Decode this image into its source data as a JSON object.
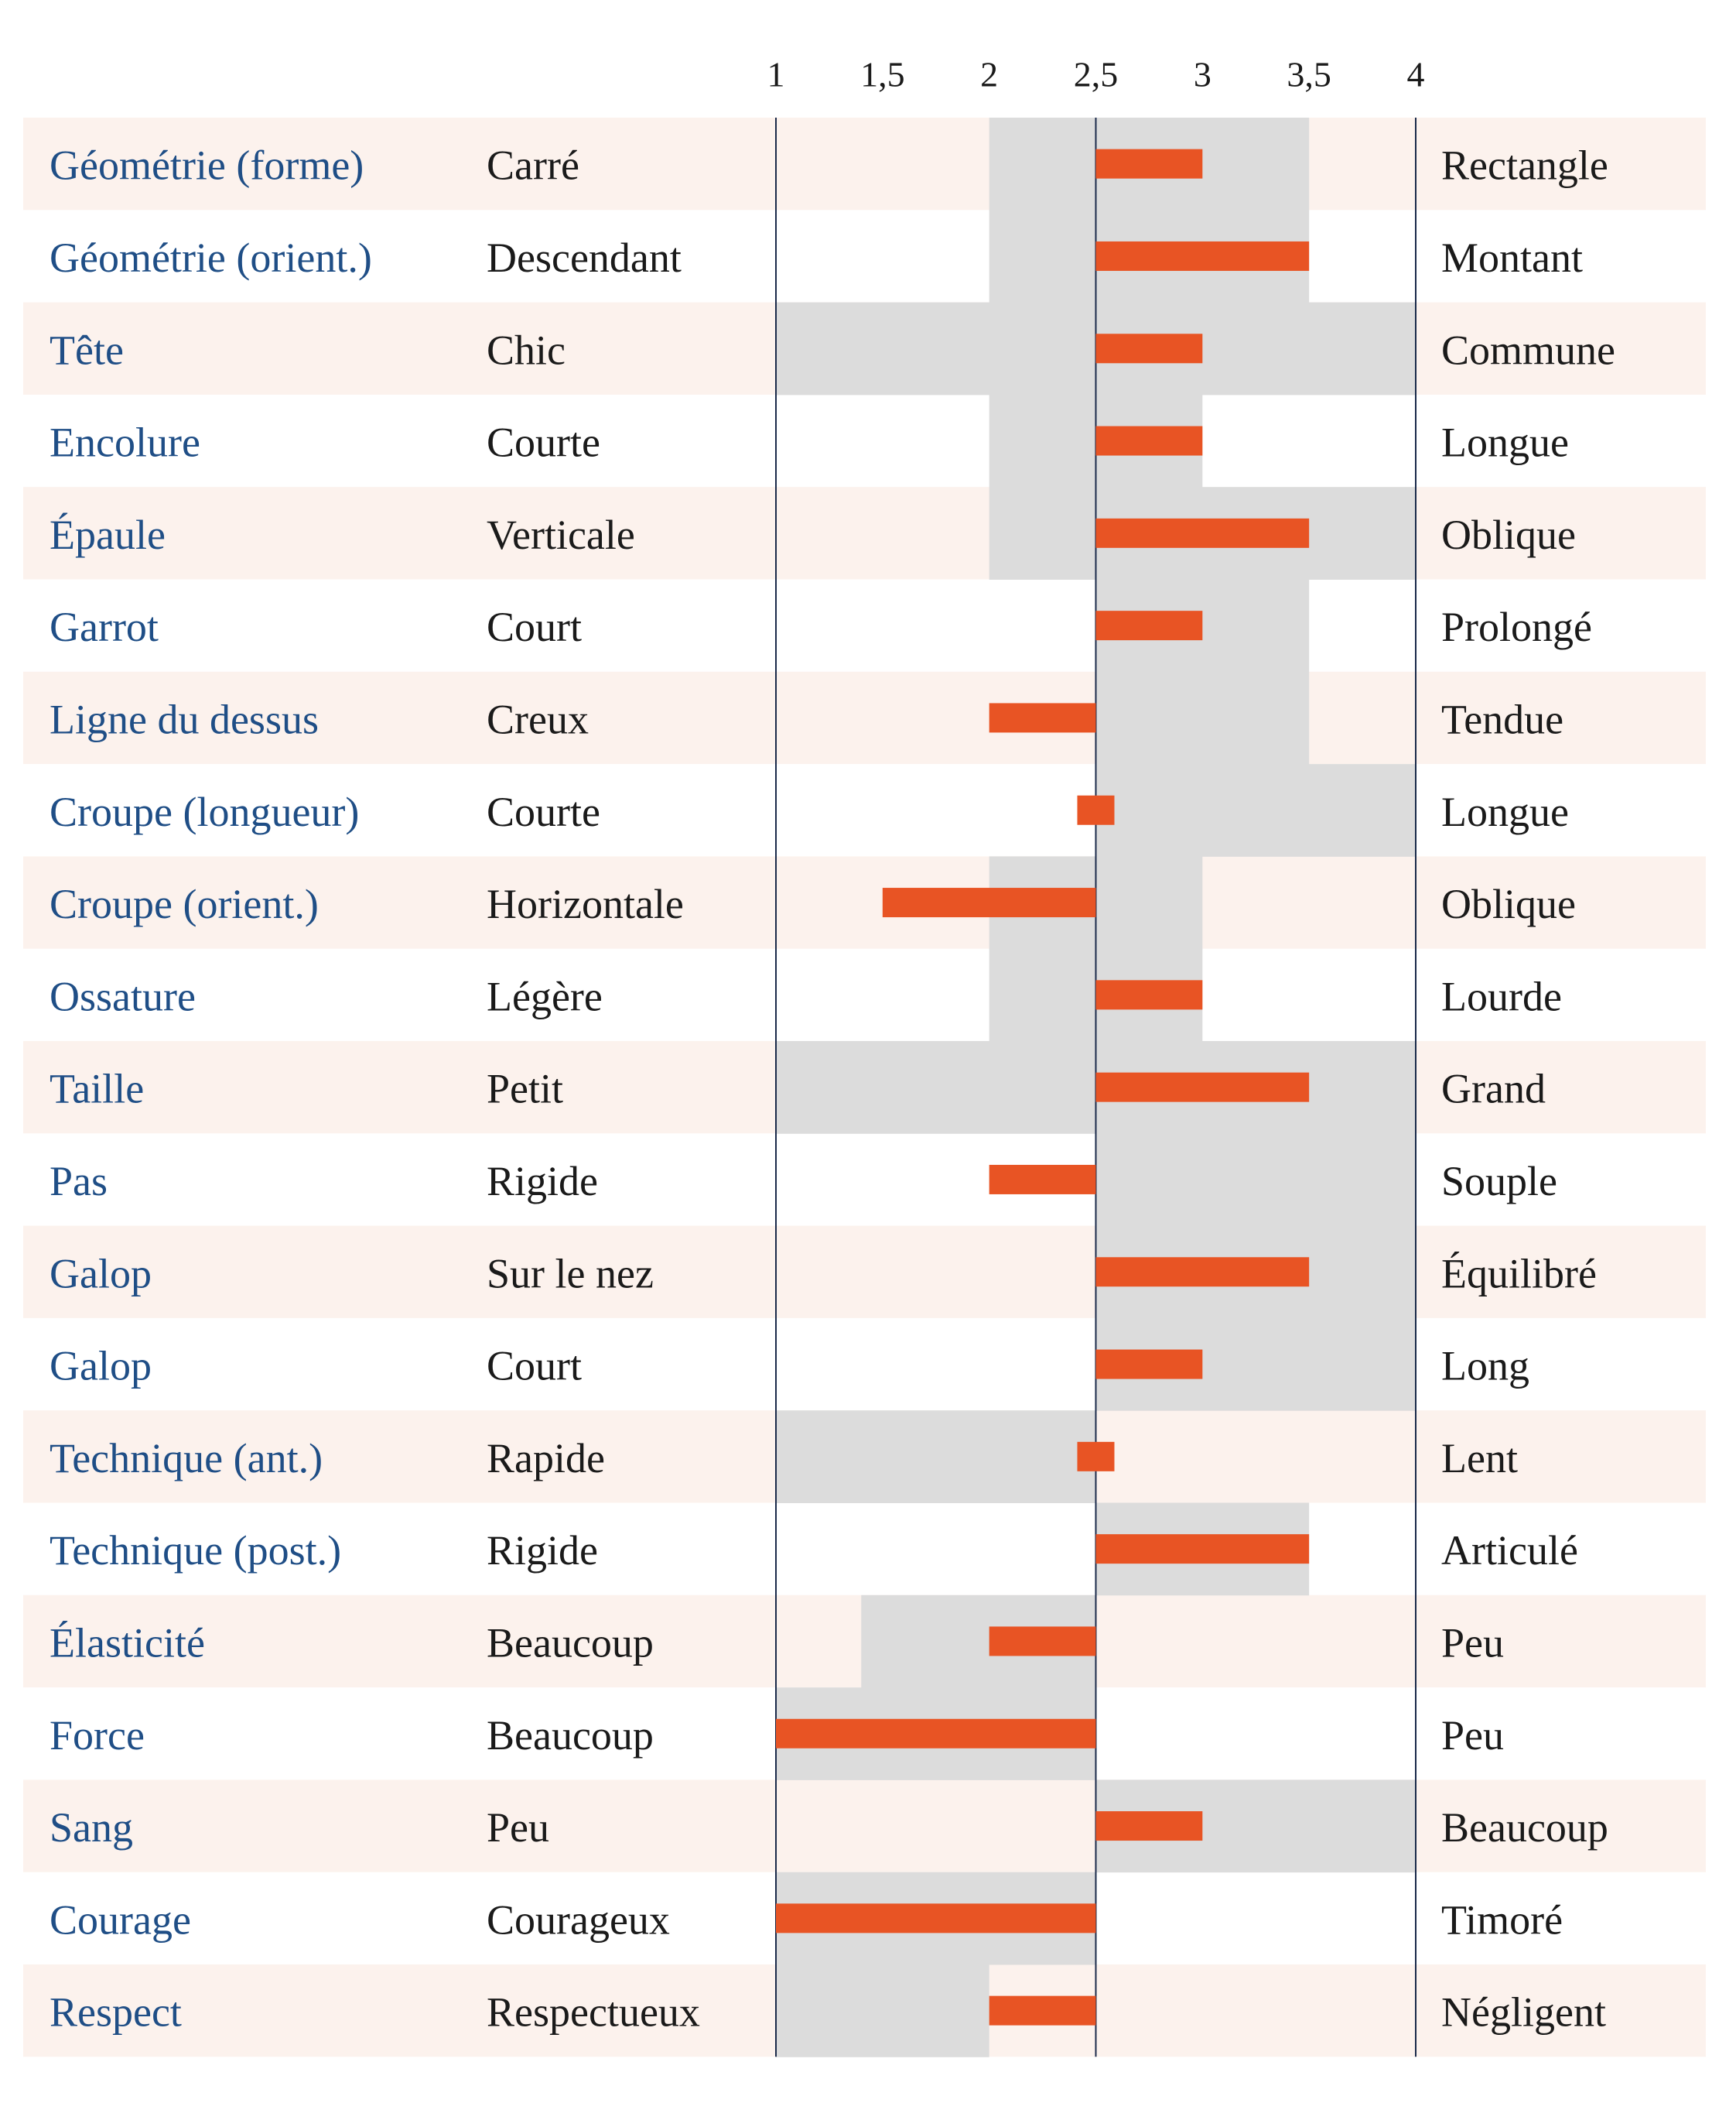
{
  "chart_data": {
    "type": "bar",
    "title": "",
    "xlabel": "",
    "ylabel": "",
    "xlim": [
      1,
      4
    ],
    "reference_value": 2.5,
    "ticks": [
      "1",
      "1,5",
      "2",
      "2,5",
      "3",
      "3,5",
      "4"
    ],
    "tick_values": [
      1,
      1.5,
      2,
      2.5,
      3,
      3.5,
      4
    ],
    "colors": {
      "bar": "#e85424",
      "range": "#dcdcdc",
      "stripe": "#fcf2ed",
      "trait_text": "#1f4e86",
      "axis_line": "#1a2a4a"
    },
    "rows": [
      {
        "trait": "Géométrie (forme)",
        "left": "Carré",
        "right": "Rectangle",
        "value": 3.0,
        "range": [
          2.0,
          3.5
        ]
      },
      {
        "trait": "Géométrie (orient.)",
        "left": "Descendant",
        "right": "Montant",
        "value": 3.5,
        "range": [
          2.0,
          3.5
        ]
      },
      {
        "trait": "Tête",
        "left": "Chic",
        "right": "Commune",
        "value": 3.0,
        "range": [
          1.0,
          4.0
        ]
      },
      {
        "trait": "Encolure",
        "left": "Courte",
        "right": "Longue",
        "value": 3.0,
        "range": [
          2.0,
          3.0
        ]
      },
      {
        "trait": "Épaule",
        "left": "Verticale",
        "right": "Oblique",
        "value": 3.5,
        "range": [
          2.0,
          4.0
        ]
      },
      {
        "trait": "Garrot",
        "left": "Court",
        "right": "Prolongé",
        "value": 3.0,
        "range": [
          2.5,
          3.5
        ]
      },
      {
        "trait": "Ligne du dessus",
        "left": "Creux",
        "right": "Tendue",
        "value": 2.0,
        "range": [
          2.5,
          3.5
        ]
      },
      {
        "trait": "Croupe (longueur)",
        "left": "Courte",
        "right": "Longue",
        "value": 2.5,
        "range": [
          2.5,
          4.0
        ]
      },
      {
        "trait": "Croupe (orient.)",
        "left": "Horizontale",
        "right": "Oblique",
        "value": 1.5,
        "range": [
          2.0,
          3.0
        ]
      },
      {
        "trait": "Ossature",
        "left": "Légère",
        "right": "Lourde",
        "value": 3.0,
        "range": [
          2.0,
          3.0
        ]
      },
      {
        "trait": "Taille",
        "left": "Petit",
        "right": "Grand",
        "value": 3.5,
        "range": [
          1.0,
          4.0
        ]
      },
      {
        "trait": "Pas",
        "left": "Rigide",
        "right": "Souple",
        "value": 2.0,
        "range": [
          2.5,
          4.0
        ]
      },
      {
        "trait": "Galop",
        "left": "Sur le nez",
        "right": "Équilibré",
        "value": 3.5,
        "range": [
          2.5,
          4.0
        ]
      },
      {
        "trait": "Galop",
        "left": "Court",
        "right": "Long",
        "value": 3.0,
        "range": [
          2.5,
          4.0
        ]
      },
      {
        "trait": "Technique (ant.)",
        "left": "Rapide",
        "right": "Lent",
        "value": 2.5,
        "range": [
          1.0,
          2.5
        ]
      },
      {
        "trait": "Technique (post.)",
        "left": "Rigide",
        "right": "Articulé",
        "value": 3.5,
        "range": [
          2.5,
          3.5
        ]
      },
      {
        "trait": "Élasticité",
        "left": "Beaucoup",
        "right": "Peu",
        "value": 2.0,
        "range": [
          1.4,
          2.5
        ]
      },
      {
        "trait": "Force",
        "left": "Beaucoup",
        "right": "Peu",
        "value": 1.0,
        "range": [
          1.0,
          2.5
        ]
      },
      {
        "trait": "Sang",
        "left": "Peu",
        "right": "Beaucoup",
        "value": 3.0,
        "range": [
          2.5,
          4.0
        ]
      },
      {
        "trait": "Courage",
        "left": "Courageux",
        "right": "Timoré",
        "value": 1.0,
        "range": [
          1.0,
          2.5
        ]
      },
      {
        "trait": "Respect",
        "left": "Respectueux",
        "right": "Négligent",
        "value": 2.0,
        "range": [
          1.0,
          2.0
        ]
      }
    ]
  }
}
